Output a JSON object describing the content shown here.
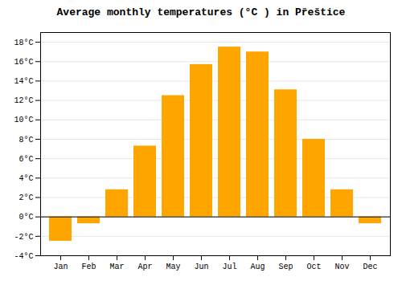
{
  "chart_data": {
    "type": "bar",
    "title": "Average monthly temperatures (°C ) in Přeštice",
    "categories": [
      "Jan",
      "Feb",
      "Mar",
      "Apr",
      "May",
      "Jun",
      "Jul",
      "Aug",
      "Sep",
      "Oct",
      "Nov",
      "Dec"
    ],
    "values": [
      -2.5,
      -0.7,
      2.8,
      7.3,
      12.5,
      15.7,
      17.5,
      17.0,
      13.1,
      8.0,
      2.8,
      -0.7
    ],
    "color": "#FFA500",
    "ylim": [
      -4,
      19
    ],
    "yticks": [
      {
        "value": -4,
        "label": "-4°C"
      },
      {
        "value": -2,
        "label": "-2°C"
      },
      {
        "value": 0,
        "label": "0°C"
      },
      {
        "value": 2,
        "label": "2°C"
      },
      {
        "value": 4,
        "label": "4°C"
      },
      {
        "value": 6,
        "label": "6°C"
      },
      {
        "value": 8,
        "label": "8°C"
      },
      {
        "value": 10,
        "label": "10°C"
      },
      {
        "value": 12,
        "label": "12°C"
      },
      {
        "value": 14,
        "label": "14°C"
      },
      {
        "value": 16,
        "label": "16°C"
      },
      {
        "value": 18,
        "label": "18°C"
      }
    ],
    "grid": true
  }
}
